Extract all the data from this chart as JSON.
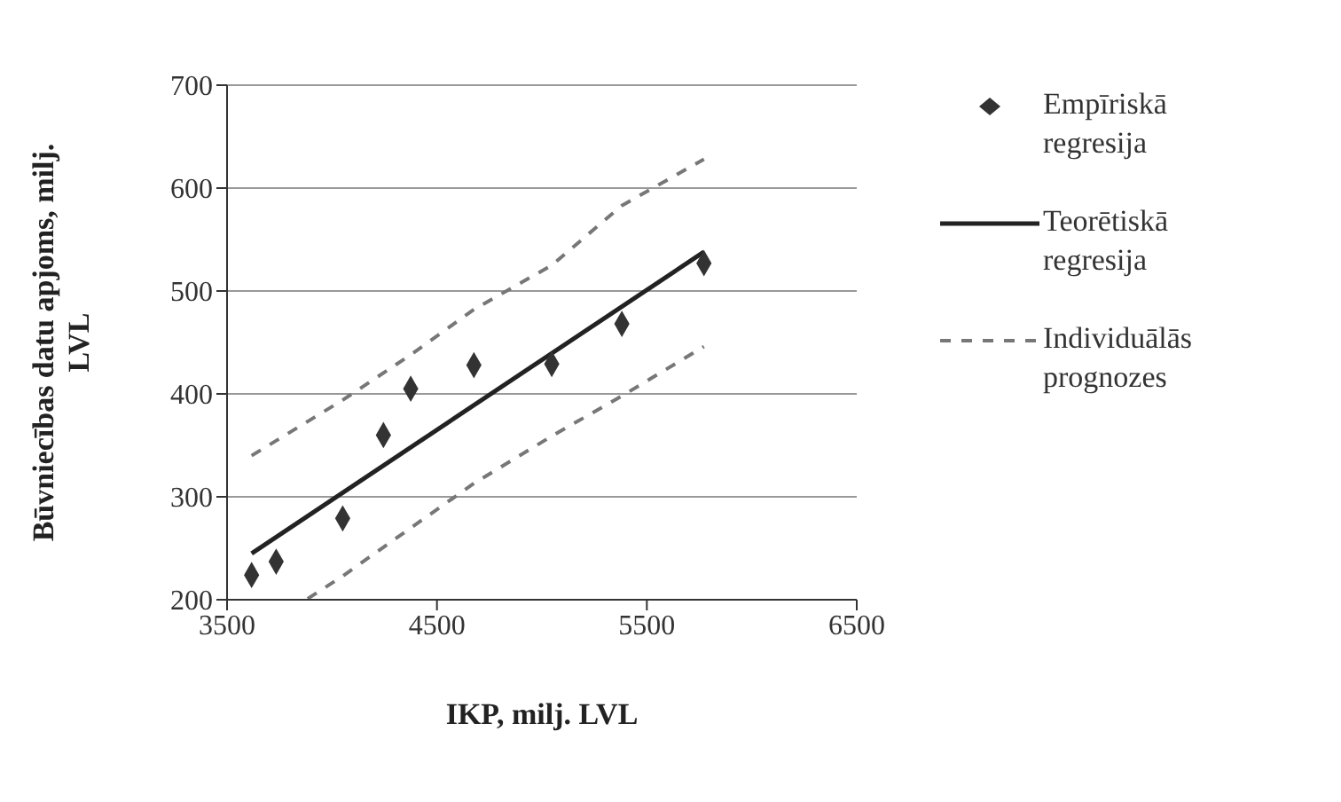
{
  "chart_data": {
    "type": "scatter",
    "xlabel": "IKP, milj. LVL",
    "ylabel": "Būvniecības datu apjoms, milj. LVL",
    "xlim": [
      3500,
      6500
    ],
    "xticks": [
      3500,
      4500,
      5500,
      6500
    ],
    "ylim": [
      200,
      700
    ],
    "yticks": [
      200,
      300,
      400,
      500,
      600,
      700
    ],
    "grid": "y",
    "legend": "right",
    "series": [
      {
        "name": "Empīriskā regresija",
        "marker": "diamond",
        "color": "#333333",
        "x": [
          3617,
          3734,
          4051,
          4245,
          4375,
          4676,
          5047,
          5381,
          5772
        ],
        "values": [
          224,
          237,
          279,
          360,
          405,
          428,
          429,
          468,
          527
        ]
      },
      {
        "name": "Teorētiskā regresija",
        "type": "line",
        "line_style": "solid",
        "color": "#222222",
        "x": [
          3617,
          5772
        ],
        "values": [
          245,
          538
        ]
      },
      {
        "name": "Individuālās prognozes",
        "type": "line",
        "line_style": "dashed",
        "color": "#777777",
        "x": [
          3617,
          4051,
          4375,
          4676,
          5047,
          5381,
          5772
        ],
        "values": [
          340,
          394,
          438,
          482,
          525,
          583,
          628
        ]
      },
      {
        "type": "line",
        "line_style": "dashed",
        "color": "#777777",
        "x": [
          3884,
          4051,
          4245,
          4676,
          5047,
          5381,
          5772
        ],
        "values": [
          201,
          223,
          251,
          313,
          359,
          398,
          446
        ]
      }
    ]
  }
}
